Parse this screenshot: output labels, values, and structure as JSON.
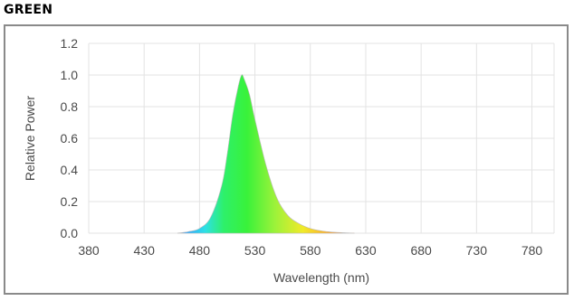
{
  "title": "GREEN",
  "chart_data": {
    "type": "area",
    "title": "GREEN",
    "xlabel": "Wavelength (nm)",
    "ylabel": "Relative Power",
    "xlim": [
      380,
      800
    ],
    "ylim": [
      0,
      1.2
    ],
    "xticks": [
      380,
      430,
      480,
      530,
      580,
      630,
      680,
      730,
      780
    ],
    "yticks": [
      "0.0",
      "0.2",
      "0.4",
      "0.6",
      "0.8",
      "1.0",
      "1.2"
    ],
    "grid": true,
    "fill": "visible-spectrum gradient",
    "series": [
      {
        "x": [
          460,
          470,
          480,
          490,
          500,
          505,
          510,
          515,
          518,
          520,
          525,
          530,
          540,
          550,
          560,
          570,
          580,
          590,
          600,
          610,
          620
        ],
        "y": [
          0.0,
          0.01,
          0.03,
          0.1,
          0.3,
          0.5,
          0.75,
          0.93,
          1.0,
          0.98,
          0.88,
          0.72,
          0.43,
          0.22,
          0.11,
          0.06,
          0.03,
          0.015,
          0.007,
          0.003,
          0.0
        ]
      }
    ]
  }
}
